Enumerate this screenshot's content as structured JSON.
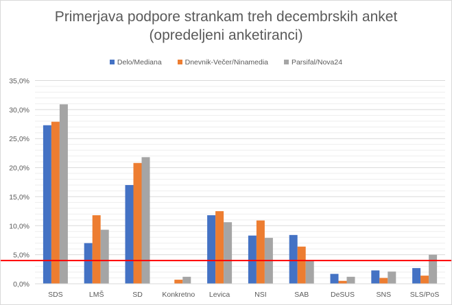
{
  "chart_data": {
    "type": "bar",
    "title": "Primerjava podpore strankam treh decembrskih anket",
    "subtitle": "(opredeljeni anketiranci)",
    "categories": [
      "SDS",
      "LMŠ",
      "SD",
      "Konkretno",
      "Levica",
      "NSI",
      "SAB",
      "DeSUS",
      "SNS",
      "SLS/PoS"
    ],
    "series": [
      {
        "name": "Delo/Mediana",
        "color": "#4472c4",
        "values": [
          27.3,
          7.0,
          17.0,
          0,
          11.8,
          8.3,
          8.4,
          1.7,
          2.3,
          2.7
        ]
      },
      {
        "name": "Dnevnik-Večer/Ninamedia",
        "color": "#ed7d31",
        "values": [
          27.9,
          11.8,
          20.8,
          0.7,
          12.5,
          10.9,
          6.4,
          0.5,
          1.0,
          1.4
        ]
      },
      {
        "name": "Parsifal/Nova24",
        "color": "#a5a5a5",
        "values": [
          30.9,
          9.3,
          21.8,
          1.2,
          10.6,
          7.9,
          3.9,
          1.2,
          2.1,
          5.0
        ]
      }
    ],
    "ylim": [
      0,
      35
    ],
    "yticks": [
      "0,0%",
      "5,0%",
      "10,0%",
      "15,0%",
      "20,0%",
      "25,0%",
      "30,0%",
      "35,0%"
    ],
    "threshold": {
      "value": 4,
      "color": "#ff0000"
    },
    "grid": true,
    "legend": "top"
  }
}
